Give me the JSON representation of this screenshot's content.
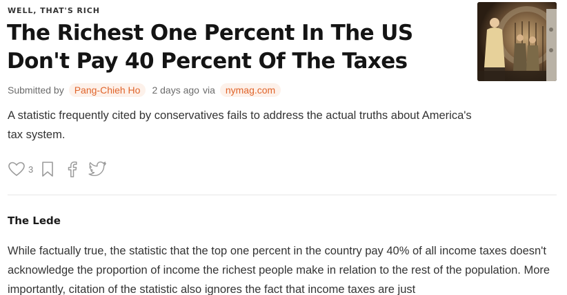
{
  "article": {
    "kicker": "WELL, THAT'S RICH",
    "title": "The Richest One Percent In The US Don't Pay 40 Percent Of The Taxes",
    "meta": {
      "submitted_by_label": "Submitted by",
      "author": "Pang-Chieh Ho",
      "time": "2 days ago",
      "via_label": "via",
      "source": "nymag.com"
    },
    "summary": "A statistic frequently cited by conservatives fails to address the actual truths about America's tax system.",
    "actions": {
      "like_count": "3",
      "icons": [
        "heart-icon",
        "bookmark-icon",
        "facebook-icon",
        "twitter-icon"
      ]
    },
    "section_title": "The Lede",
    "body": "While factually true, the statistic that the top one percent in the country pay 40% of all income taxes doesn't acknowledge the proportion of income the richest people make in relation to the rest of the population. More importantly, citation of the statistic also ignores the fact that income taxes are just"
  },
  "colors": {
    "accent": "#e0642a",
    "pill_bg": "#fdf1ea",
    "text": "#1a1a1a",
    "muted": "#6b6b6b"
  }
}
